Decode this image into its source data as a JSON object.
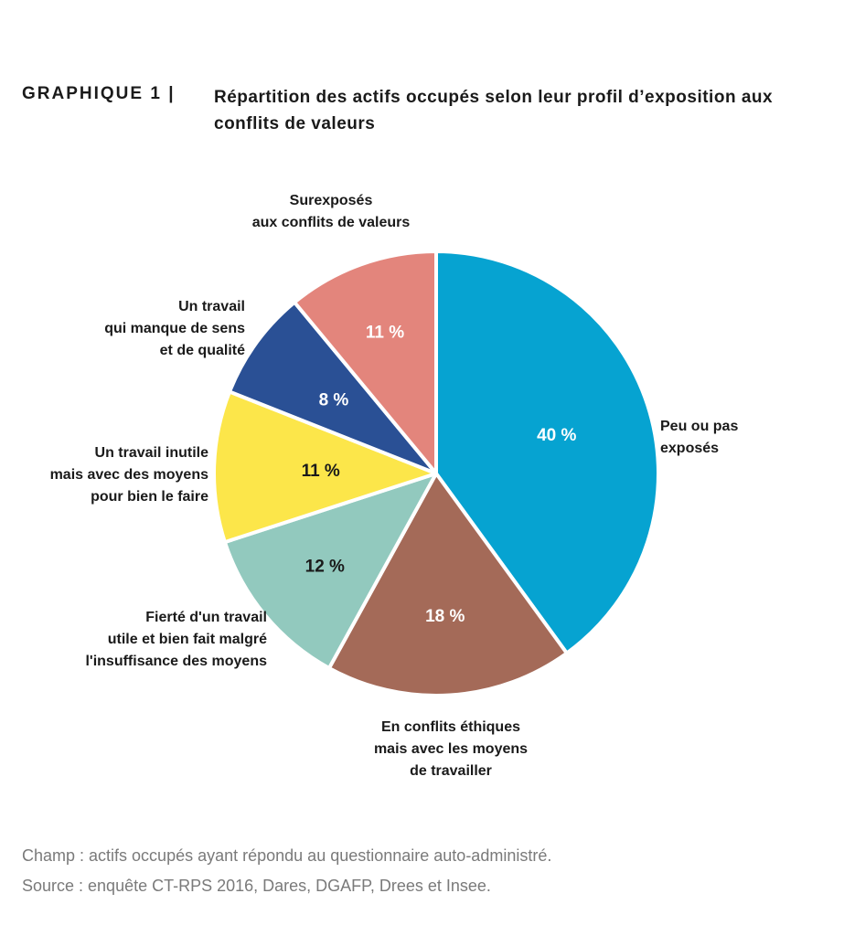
{
  "header": {
    "label": "GRAPHIQUE 1 |",
    "title": "Répartition des actifs occupés selon leur profil d’exposition aux conflits de valeurs"
  },
  "chart_data": {
    "type": "pie",
    "start_angle_deg": 0,
    "direction": "clockwise",
    "slices": [
      {
        "value": 40,
        "pct_label": "40 %",
        "color": "#06A3D1",
        "text_color": "#ffffff",
        "label_lines": [
          "Peu ou pas",
          "exposés"
        ]
      },
      {
        "value": 18,
        "pct_label": "18 %",
        "color": "#A46A58",
        "text_color": "#ffffff",
        "label_lines": [
          "En conflits éthiques",
          "mais avec les moyens",
          "de travailler"
        ]
      },
      {
        "value": 12,
        "pct_label": "12 %",
        "color": "#92C9BE",
        "text_color": "#1a1a1a",
        "label_lines": [
          "Fierté d'un travail",
          "utile et bien fait malgré",
          "l'insuffisance des moyens"
        ]
      },
      {
        "value": 11,
        "pct_label": "11 %",
        "color": "#FCE64A",
        "text_color": "#1a1a1a",
        "label_lines": [
          "Un travail inutile",
          "mais avec des moyens",
          "pour bien le faire"
        ]
      },
      {
        "value": 8,
        "pct_label": "8 %",
        "color": "#2A5095",
        "text_color": "#ffffff",
        "label_lines": [
          "Un travail",
          "qui manque de sens",
          "et de qualité"
        ]
      },
      {
        "value": 11,
        "pct_label": "11 %",
        "color": "#E3857C",
        "text_color": "#ffffff",
        "label_lines": [
          "Surexposés",
          "aux conflits de valeurs"
        ]
      }
    ]
  },
  "footnotes": {
    "champ": "Champ : actifs occupés ayant répondu au questionnaire auto-administré.",
    "source": "Source : enquête CT-RPS 2016, Dares, DGAFP, Drees et Insee."
  }
}
